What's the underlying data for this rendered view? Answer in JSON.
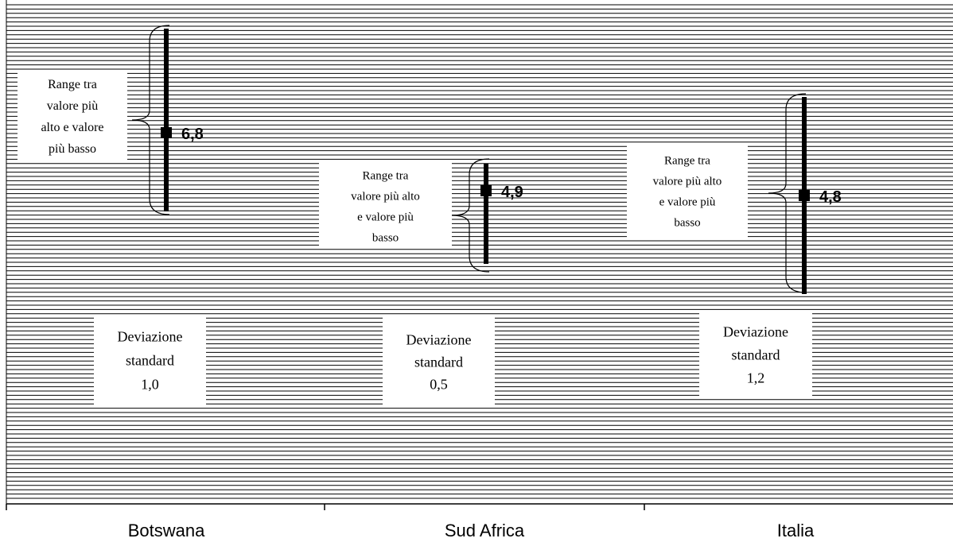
{
  "chart_data": {
    "type": "range",
    "categories": [
      "Botswana",
      "Sud Africa",
      "Italia"
    ],
    "series": [
      {
        "values": [
          6.8,
          4.9,
          4.8
        ],
        "value_labels": [
          "6,8",
          "4,9",
          "4,8"
        ],
        "range_annotation": [
          [
            "Range tra",
            "valore più",
            "alto e valore",
            "più basso"
          ],
          [
            "Range tra",
            "valore più alto",
            "e valore più",
            "basso"
          ],
          [
            "Range tra",
            "valore più alto",
            "e valore più",
            "basso"
          ]
        ],
        "std_annotation": [
          [
            "Deviazione",
            "standard",
            "1,0"
          ],
          [
            "Deviazione",
            "standard",
            "0,5"
          ],
          [
            "Deviazione",
            "standard",
            "1,2"
          ]
        ],
        "std_dev": [
          1.0,
          0.5,
          1.2
        ]
      }
    ],
    "grid": "horizontal hatched lines",
    "colors": {
      "line": "#000000",
      "background": "#ffffff"
    }
  }
}
